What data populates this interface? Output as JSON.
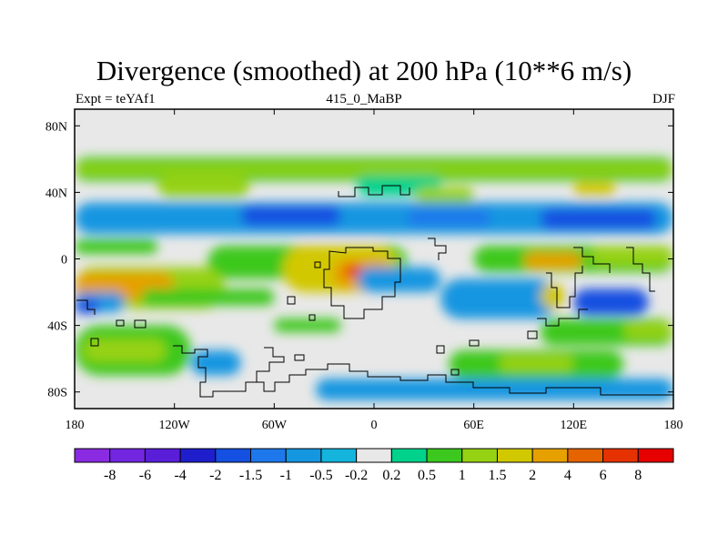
{
  "header": {
    "title": "Divergence (smoothed) at 200 hPa (10**6 m/s)",
    "left_label": "Expt = teYAf1",
    "center_label": "415_0_MaBP",
    "right_label": "DJF"
  },
  "chart_data": {
    "type": "heatmap",
    "title": "Divergence (smoothed) at 200 hPa (10**6 m/s)",
    "xlabel": "",
    "ylabel": "",
    "xlim": [
      -180,
      180
    ],
    "ylim": [
      -90,
      90
    ],
    "x_ticks": [
      {
        "value": -180,
        "label": "180"
      },
      {
        "value": -120,
        "label": "120W"
      },
      {
        "value": -60,
        "label": "60W"
      },
      {
        "value": 0,
        "label": "0"
      },
      {
        "value": 60,
        "label": "60E"
      },
      {
        "value": 120,
        "label": "120E"
      },
      {
        "value": 180,
        "label": "180"
      }
    ],
    "y_ticks": [
      {
        "value": 80,
        "label": "80N"
      },
      {
        "value": 40,
        "label": "40N"
      },
      {
        "value": 0,
        "label": "0"
      },
      {
        "value": -40,
        "label": "40S"
      },
      {
        "value": -80,
        "label": "80S"
      }
    ],
    "colorbar": {
      "levels": [
        "-8",
        "-6",
        "-4",
        "-2",
        "-1.5",
        "-1",
        "-0.5",
        "-0.2",
        "0.2",
        "0.5",
        "1",
        "1.5",
        "2",
        "4",
        "6",
        "8"
      ],
      "colors": [
        "#8a2be2",
        "#7326e0",
        "#5a1ed9",
        "#1e1ecd",
        "#1450e1",
        "#1e78eb",
        "#1496e1",
        "#14b4dc",
        "#e8e8e8",
        "#00d28c",
        "#3cc81e",
        "#96d214",
        "#d2c800",
        "#e6a000",
        "#e66400",
        "#e63200",
        "#e60000"
      ]
    },
    "regions": [
      {
        "value": 0.7,
        "lon": [
          -180,
          180
        ],
        "lat": [
          47,
          61
        ]
      },
      {
        "value": 1.2,
        "lon": [
          -180,
          180
        ],
        "lat": [
          51,
          57
        ]
      },
      {
        "value": 0.3,
        "lon": [
          -10,
          40
        ],
        "lat": [
          38,
          50
        ]
      },
      {
        "value": 1.5,
        "lon": [
          -130,
          -75
        ],
        "lat": [
          37,
          50
        ]
      },
      {
        "value": 1.4,
        "lon": [
          25,
          60
        ],
        "lat": [
          33,
          43
        ]
      },
      {
        "value": 1.6,
        "lon": [
          120,
          145
        ],
        "lat": [
          38,
          46
        ]
      },
      {
        "value": -0.8,
        "lon": [
          -180,
          180
        ],
        "lat": [
          15,
          34
        ]
      },
      {
        "value": -1.8,
        "lon": [
          -80,
          -20
        ],
        "lat": [
          20,
          32
        ]
      },
      {
        "value": -1.8,
        "lon": [
          100,
          170
        ],
        "lat": [
          18,
          30
        ]
      },
      {
        "value": -1.0,
        "lon": [
          20,
          70
        ],
        "lat": [
          20,
          30
        ]
      },
      {
        "value": 0.8,
        "lon": [
          -180,
          -130
        ],
        "lat": [
          3,
          12
        ]
      },
      {
        "value": 0.9,
        "lon": [
          -100,
          20
        ],
        "lat": [
          -12,
          8
        ]
      },
      {
        "value": 1.8,
        "lon": [
          -55,
          15
        ],
        "lat": [
          -20,
          8
        ]
      },
      {
        "value": 3.0,
        "lon": [
          -25,
          10
        ],
        "lat": [
          -18,
          0
        ]
      },
      {
        "value": 6.5,
        "lon": [
          -18,
          -6
        ],
        "lat": [
          -11,
          -4
        ]
      },
      {
        "value": 0.8,
        "lon": [
          60,
          180
        ],
        "lat": [
          -8,
          8
        ]
      },
      {
        "value": 2.5,
        "lon": [
          90,
          125
        ],
        "lat": [
          -6,
          4
        ]
      },
      {
        "value": 1.3,
        "lon": [
          130,
          180
        ],
        "lat": [
          -4,
          8
        ]
      },
      {
        "value": 1.2,
        "lon": [
          -180,
          -90
        ],
        "lat": [
          -30,
          -5
        ]
      },
      {
        "value": 2.2,
        "lon": [
          -180,
          -120
        ],
        "lat": [
          -25,
          -8
        ]
      },
      {
        "value": -0.6,
        "lon": [
          -180,
          -150
        ],
        "lat": [
          -32,
          -20
        ]
      },
      {
        "value": -1.6,
        "lon": [
          -180,
          -165
        ],
        "lat": [
          -33,
          -24
        ]
      },
      {
        "value": 0.9,
        "lon": [
          -140,
          -60
        ],
        "lat": [
          -28,
          -18
        ]
      },
      {
        "value": -0.7,
        "lon": [
          -10,
          40
        ],
        "lat": [
          -20,
          -5
        ]
      },
      {
        "value": -0.6,
        "lon": [
          40,
          110
        ],
        "lat": [
          -36,
          -12
        ]
      },
      {
        "value": -1.8,
        "lon": [
          120,
          165
        ],
        "lat": [
          -34,
          -18
        ]
      },
      {
        "value": 1.8,
        "lon": [
          100,
          115
        ],
        "lat": [
          -30,
          -15
        ]
      },
      {
        "value": 0.8,
        "lon": [
          100,
          180
        ],
        "lat": [
          -52,
          -36
        ]
      },
      {
        "value": 1.3,
        "lon": [
          150,
          180
        ],
        "lat": [
          -48,
          -38
        ]
      },
      {
        "value": 0.7,
        "lon": [
          -180,
          -110
        ],
        "lat": [
          -70,
          -40
        ]
      },
      {
        "value": 1.2,
        "lon": [
          -175,
          -125
        ],
        "lat": [
          -62,
          -48
        ]
      },
      {
        "value": -0.6,
        "lon": [
          -110,
          -80
        ],
        "lat": [
          -70,
          -55
        ]
      },
      {
        "value": 0.6,
        "lon": [
          -60,
          -20
        ],
        "lat": [
          -44,
          -36
        ]
      },
      {
        "value": 0.8,
        "lon": [
          45,
          150
        ],
        "lat": [
          -72,
          -55
        ]
      },
      {
        "value": 1.2,
        "lon": [
          75,
          120
        ],
        "lat": [
          -68,
          -58
        ]
      },
      {
        "value": -0.7,
        "lon": [
          -35,
          180
        ],
        "lat": [
          -85,
          -72
        ]
      }
    ]
  }
}
